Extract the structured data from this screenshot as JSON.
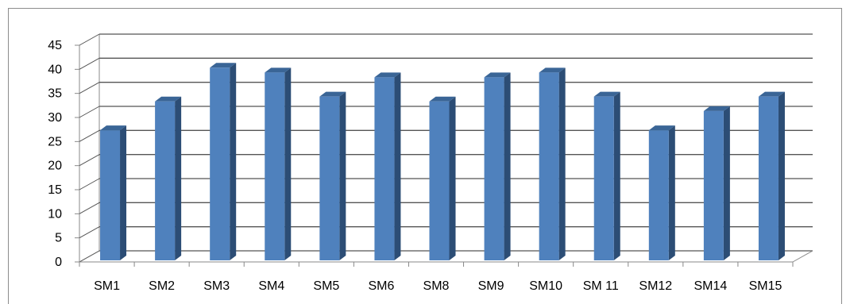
{
  "chart_data": {
    "type": "bar",
    "style": "3d-clustered-column",
    "categories": [
      "SM1",
      "SM2",
      "SM3",
      "SM4",
      "SM5",
      "SM6",
      "SM8",
      "SM9",
      "SM10",
      "SM 11",
      "SM12",
      "SM14",
      "SM15"
    ],
    "series": [
      {
        "values": [
          28,
          34,
          41,
          40,
          35,
          39,
          34,
          39,
          40,
          35,
          28,
          32,
          35
        ]
      }
    ],
    "title": "",
    "xlabel": "",
    "ylabel": "",
    "ylim": [
      0,
      45
    ],
    "yticks": [
      0,
      5,
      10,
      15,
      20,
      25,
      30,
      35,
      40,
      45
    ],
    "grid": true,
    "legend": "none",
    "colors": {
      "bar_front": "#4f81bd",
      "bar_side": "#2c4d75",
      "bar_top": "#3a6596",
      "gridline": "#555555",
      "axis": "#888888"
    }
  }
}
